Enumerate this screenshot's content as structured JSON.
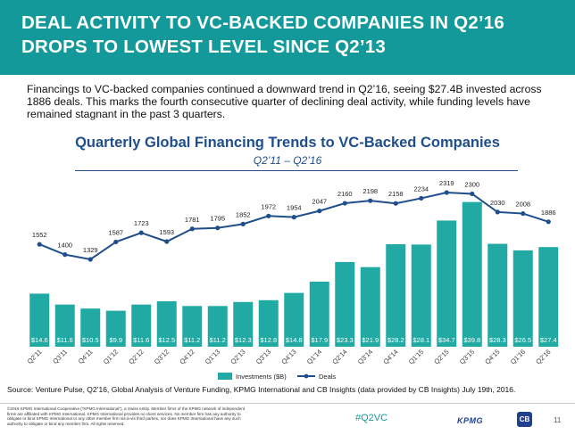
{
  "header": {
    "title_line1": "DEAL ACTIVITY TO VC-BACKED COMPANIES IN Q2’16",
    "title_line2": "DROPS TO LOWEST LEVEL SINCE Q2’13"
  },
  "intro_text": "Financings to VC-backed companies continued a downward trend in Q2’16, seeing $27.4B invested across 1886 deals. This marks the fourth consecutive quarter of declining deal activity, while funding levels have remained stagnant in the past 3 quarters.",
  "chart_data": {
    "type": "bar",
    "title": "Quarterly Global Financing Trends to VC-Backed Companies",
    "subtitle": "Q2’11 – Q2’16",
    "categories": [
      "Q2'11",
      "Q3'11",
      "Q4'11",
      "Q1'12",
      "Q2'12",
      "Q3'12",
      "Q4'12",
      "Q1'13",
      "Q2'13",
      "Q3'13",
      "Q4'13",
      "Q1'14",
      "Q2'14",
      "Q3'14",
      "Q4'14",
      "Q1'15",
      "Q2'15",
      "Q3'15",
      "Q4'15",
      "Q1'16",
      "Q2'16"
    ],
    "series": [
      {
        "name": "Investments ($B)",
        "type": "bar",
        "color": "#20aaa3",
        "values": [
          14.6,
          11.6,
          10.5,
          9.9,
          11.6,
          12.5,
          11.2,
          11.2,
          12.3,
          12.8,
          14.8,
          17.9,
          23.3,
          21.9,
          28.2,
          28.1,
          34.7,
          39.8,
          28.3,
          26.5,
          27.4
        ],
        "labels": [
          "$14.6",
          "$11.6",
          "$10.5",
          "$9.9",
          "$11.6",
          "$12.5",
          "$11.2",
          "$11.2",
          "$12.3",
          "$12.8",
          "$14.8",
          "$17.9",
          "$23.3",
          "$21.9",
          "$28.2",
          "$28.1",
          "$34.7",
          "$39.8",
          "$28.3",
          "$26.5",
          "$27.4"
        ]
      },
      {
        "name": "Deals",
        "type": "line",
        "color": "#1f4e8c",
        "values": [
          1552,
          1400,
          1329,
          1587,
          1723,
          1593,
          1781,
          1795,
          1852,
          1972,
          1954,
          2047,
          2160,
          2198,
          2158,
          2234,
          2319,
          2300,
          2030,
          2008,
          1886
        ]
      }
    ],
    "legend": "bottom-center"
  },
  "source": "Source: Venture Pulse, Q2’16, Global Analysis of Venture Funding, KPMG International and CB Insights (data provided by CB Insights) July 19th, 2016.",
  "legal": "©2016 KPMG International Cooperative (“KPMG International”), a Swiss entity. Member firms of the KPMG network of independent firms are affiliated with KPMG International. KPMG International provides no client services. No member firm has any authority to obligate or bind KPMG International or any other member firm vis-à-vis third parties, nor does KPMG International have any such authority to obligate or bind any member firm. All rights reserved.",
  "footer": {
    "hashtag": "#Q2VC",
    "kpmg_logo": "KPMG",
    "cb_logo": "CB",
    "page_number": "11"
  }
}
